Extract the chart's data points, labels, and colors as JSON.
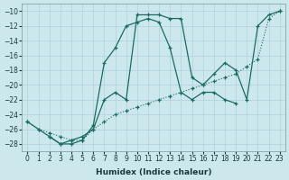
{
  "xlabel": "Humidex (Indice chaleur)",
  "bg_color": "#cce8ec",
  "grid_color": "#b0d0d8",
  "line_color": "#1a6b60",
  "xlim": [
    -0.5,
    23.5
  ],
  "ylim": [
    -29,
    -9
  ],
  "yticks": [
    -28,
    -26,
    -24,
    -22,
    -20,
    -18,
    -16,
    -14,
    -12,
    -10
  ],
  "xticks": [
    0,
    1,
    2,
    3,
    4,
    5,
    6,
    7,
    8,
    9,
    10,
    11,
    12,
    13,
    14,
    15,
    16,
    17,
    18,
    19,
    20,
    21,
    22,
    23
  ],
  "line_dotted_x": [
    0,
    1,
    2,
    3,
    4,
    5,
    6,
    7,
    8,
    9,
    10,
    11,
    12,
    13,
    14,
    15,
    16,
    17,
    18,
    19,
    20,
    21,
    22,
    23
  ],
  "line_dotted_y": [
    -25,
    -26,
    -26.5,
    -27,
    -27.5,
    -27.5,
    -26,
    -25,
    -24,
    -23.5,
    -23,
    -22.5,
    -22,
    -21.5,
    -21,
    -20.5,
    -20,
    -19.5,
    -19,
    -18.5,
    -17.5,
    -16.5,
    -11,
    -10
  ],
  "line_peak_x": [
    0,
    1,
    2,
    3,
    4,
    5,
    6,
    7,
    8,
    9,
    10,
    11,
    12,
    13,
    14,
    15,
    16,
    17,
    18,
    19,
    20,
    21,
    22,
    23
  ],
  "line_peak_y": [
    -25,
    -26,
    -27,
    -28,
    -27.5,
    -27,
    -26,
    -22,
    -21,
    -22,
    -10.5,
    -10.5,
    -10.5,
    -11,
    -11,
    -19,
    -20,
    -18.5,
    -17,
    -18,
    -22,
    -12,
    -10.5,
    -10
  ],
  "line_hill_x": [
    2,
    3,
    4,
    5,
    6,
    7,
    8,
    9,
    10,
    11,
    12,
    13,
    14,
    15,
    16,
    17,
    18,
    19
  ],
  "line_hill_y": [
    -27,
    -28,
    -28,
    -27.5,
    -25.5,
    -17,
    -15,
    -12,
    -11.5,
    -11,
    -11.5,
    -15,
    -21,
    -22,
    -21,
    -21,
    -22,
    -22.5
  ]
}
